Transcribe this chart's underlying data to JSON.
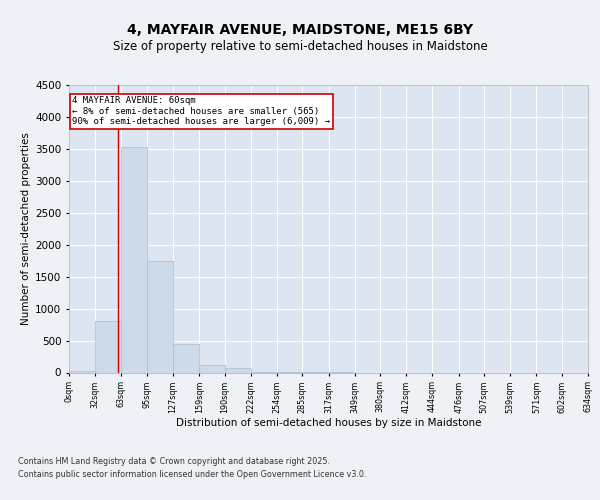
{
  "title_line1": "4, MAYFAIR AVENUE, MAIDSTONE, ME15 6BY",
  "title_line2": "Size of property relative to semi-detached houses in Maidstone",
  "xlabel": "Distribution of semi-detached houses by size in Maidstone",
  "ylabel": "Number of semi-detached properties",
  "bins": [
    0,
    32,
    63,
    95,
    127,
    159,
    190,
    222,
    254,
    285,
    317,
    349,
    380,
    412,
    444,
    476,
    507,
    539,
    571,
    602,
    634
  ],
  "bin_labels": [
    "0sqm",
    "32sqm",
    "63sqm",
    "95sqm",
    "127sqm",
    "159sqm",
    "190sqm",
    "222sqm",
    "254sqm",
    "285sqm",
    "317sqm",
    "349sqm",
    "380sqm",
    "412sqm",
    "444sqm",
    "476sqm",
    "507sqm",
    "539sqm",
    "571sqm",
    "602sqm",
    "634sqm"
  ],
  "counts": [
    30,
    800,
    3530,
    1750,
    450,
    125,
    70,
    10,
    5,
    2,
    1,
    0,
    0,
    0,
    0,
    0,
    0,
    0,
    0,
    0
  ],
  "bar_color": "#ccdaea",
  "bar_edge_color": "#a8bfcf",
  "ylim": [
    0,
    4500
  ],
  "yticks": [
    0,
    500,
    1000,
    1500,
    2000,
    2500,
    3000,
    3500,
    4000,
    4500
  ],
  "property_line_x": 60,
  "property_line_color": "#cc0000",
  "annotation_text": "4 MAYFAIR AVENUE: 60sqm\n← 8% of semi-detached houses are smaller (565)\n90% of semi-detached houses are larger (6,009) →",
  "annotation_box_color": "#ffffff",
  "annotation_box_edge_color": "#cc0000",
  "footer_text": "Contains HM Land Registry data © Crown copyright and database right 2025.\nContains public sector information licensed under the Open Government Licence v3.0.",
  "background_color": "#eef2f7",
  "plot_background_color": "#dde6f0"
}
